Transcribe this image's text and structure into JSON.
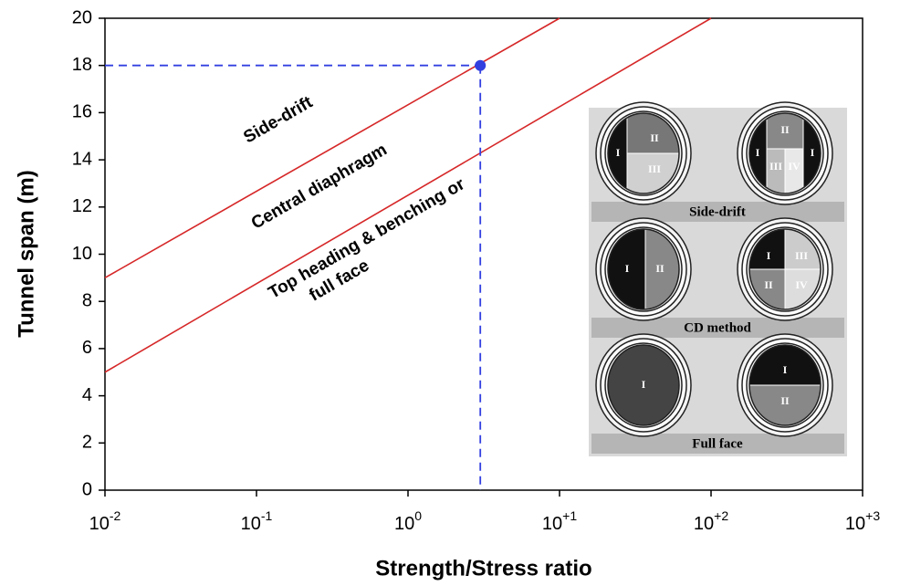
{
  "chart_data": {
    "type": "line",
    "xlabel": "Strength/Stress ratio",
    "ylabel": "Tunnel span (m)",
    "xlog": true,
    "xlim": [
      0.01,
      1000
    ],
    "ylim": [
      0,
      20
    ],
    "xticks": [
      {
        "value": 0.01,
        "label": "10",
        "exponent": "-2"
      },
      {
        "value": 0.1,
        "label": "10",
        "exponent": "-1"
      },
      {
        "value": 1,
        "label": "10",
        "exponent": "0"
      },
      {
        "value": 10,
        "label": "10",
        "exponent": "+1"
      },
      {
        "value": 100,
        "label": "10",
        "exponent": "+2"
      },
      {
        "value": 1000,
        "label": "10",
        "exponent": "+3"
      }
    ],
    "yticks": [
      0,
      2,
      4,
      6,
      8,
      10,
      12,
      14,
      16,
      18,
      20
    ],
    "lines": [
      {
        "color": "#d62728",
        "x": [
          0.01,
          10
        ],
        "y": [
          9,
          20
        ]
      },
      {
        "color": "#d62728",
        "x": [
          0.01,
          100
        ],
        "y": [
          5,
          20
        ]
      }
    ],
    "marker": {
      "x": 3,
      "y": 18,
      "color": "#3340e0"
    },
    "annotations": [
      "Side-drift",
      "Central diaphragm",
      "Top heading & benching or",
      "full face"
    ],
    "inset": {
      "panels": [
        {
          "caption": "Side-drift",
          "left": [
            "I",
            "II",
            "III"
          ],
          "right": [
            "I",
            "I",
            "II",
            "III",
            "IV"
          ]
        },
        {
          "caption": "CD method",
          "left": [
            "I",
            "II"
          ],
          "right": [
            "I",
            "III",
            "II",
            "IV"
          ]
        },
        {
          "caption": "Full face",
          "left": [
            "I"
          ],
          "right": [
            "I",
            "II"
          ]
        }
      ]
    }
  }
}
